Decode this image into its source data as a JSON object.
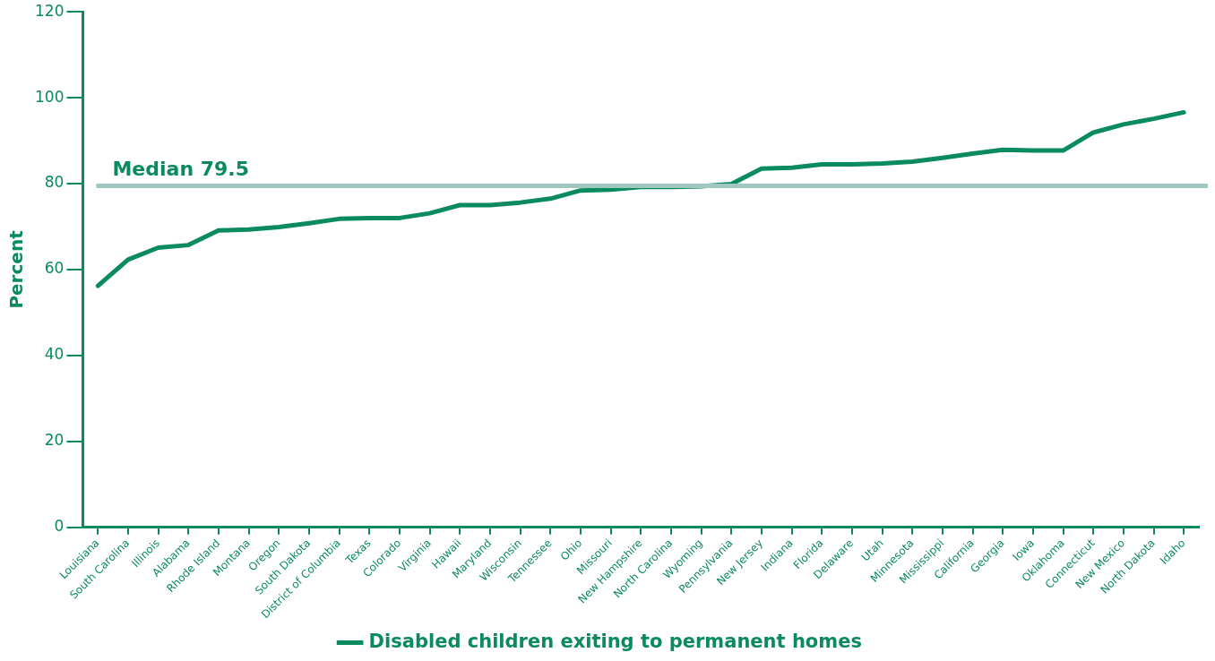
{
  "chart_data": {
    "type": "line",
    "ylabel": "Percent",
    "categories": [
      "Louisiana",
      "South Carolina",
      "Illinois",
      "Alabama",
      "Rhode Island",
      "Montana",
      "Oregon",
      "South Dakota",
      "District of Columbia",
      "Texas",
      "Colorado",
      "Virginia",
      "Hawaii",
      "Maryland",
      "Wisconsin",
      "Tennessee",
      "Ohio",
      "Missouri",
      "New Hampshire",
      "North Carolina",
      "Wyoming",
      "Pennsylvania",
      "New Jersey",
      "Indiana",
      "Florida",
      "Delaware",
      "Utah",
      "Minnesota",
      "Mississippi",
      "California",
      "Georgia",
      "Iowa",
      "Oklahoma",
      "Connecticut",
      "New Mexico",
      "North Dakota",
      "Idaho"
    ],
    "series": [
      {
        "name": "Disabled children exiting to permanent homes",
        "color": "#0a8a5f",
        "values": [
          56.2,
          62.3,
          65.1,
          65.7,
          69.1,
          69.3,
          69.9,
          70.8,
          71.8,
          72.0,
          72.0,
          73.1,
          75.0,
          75.0,
          75.6,
          76.5,
          78.4,
          78.6,
          79.2,
          79.2,
          79.4,
          79.9,
          83.5,
          83.7,
          84.5,
          84.5,
          84.7,
          85.1,
          86.0,
          87.0,
          87.9,
          87.7,
          87.7,
          91.9,
          93.8,
          95.1,
          96.6
        ]
      }
    ],
    "ylim": [
      0,
      120
    ],
    "yticks": [
      0,
      20,
      40,
      60,
      80,
      100,
      120
    ],
    "ref_lines": [
      {
        "axis": "y",
        "value": 79.5,
        "label": "Median 79.5",
        "color": "#9fc9c0"
      }
    ],
    "grid": false,
    "legend": "bottom",
    "marker": "none",
    "line_style": "solid"
  }
}
